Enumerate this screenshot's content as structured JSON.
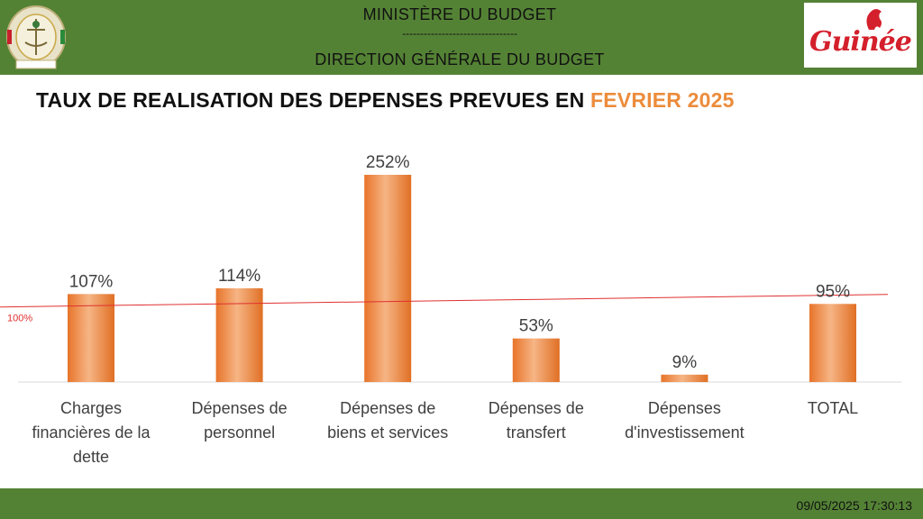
{
  "header": {
    "ministry": "MINISTÈRE DU BUDGET",
    "separator": "--------------------------------",
    "direction": "DIRECTION GÉNÉRALE DU BUDGET",
    "logo_text": "Guinée",
    "emblem_caption": "JUSTICE"
  },
  "title": {
    "main": "TAUX DE REALISATION DES DEPENSES PREVUES EN",
    "period": "FEVRIER 2025"
  },
  "colors": {
    "header_bg": "#548235",
    "bar": "#ed7d31",
    "bar_highlight": "#f8c8a0",
    "reference_line": "#e03030",
    "title_accent": "#ec8c3c",
    "logo_red": "#d4202c"
  },
  "chart_data": {
    "type": "bar",
    "categories": [
      [
        "Charges",
        "financières de la",
        "dette"
      ],
      [
        "Dépenses de",
        "personnel"
      ],
      [
        "Dépenses de",
        "biens et services"
      ],
      [
        "Dépenses de",
        "transfert"
      ],
      [
        "Dépenses",
        "d'investissement"
      ],
      [
        "TOTAL"
      ]
    ],
    "values": [
      107,
      114,
      252,
      53,
      9,
      95
    ],
    "data_labels": [
      "107%",
      "114%",
      "252%",
      "53%",
      "9%",
      "95%"
    ],
    "unit": "%",
    "reference_line": {
      "value": 100,
      "label": "100%"
    },
    "ylim": [
      0,
      270
    ],
    "grid": false,
    "legend": "none"
  },
  "footer": {
    "timestamp": "09/05/2025 17:30:13"
  }
}
